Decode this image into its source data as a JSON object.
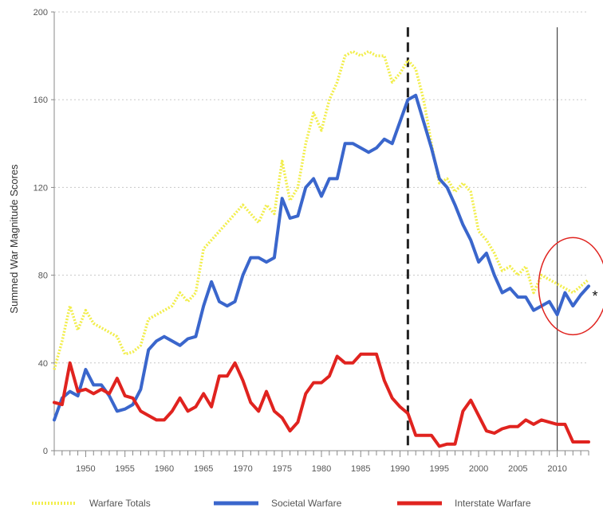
{
  "chart_data": {
    "type": "line",
    "title": "",
    "xlabel": "",
    "ylabel": "Summed War Magnitude Scores",
    "xlim": [
      1946,
      2014
    ],
    "ylim": [
      0,
      200
    ],
    "x_ticks": [
      1950,
      1955,
      1960,
      1965,
      1970,
      1975,
      1980,
      1985,
      1990,
      1995,
      2000,
      2005,
      2010
    ],
    "y_ticks": [
      0,
      40,
      80,
      120,
      160,
      200
    ],
    "grid": "horizontal-dotted",
    "legend": "bottom",
    "annotations": {
      "dashed_line_x": 1991,
      "solid_line_x": 2010,
      "circle_center": [
        2012,
        75
      ],
      "asterisk": "*"
    },
    "x": [
      1946,
      1947,
      1948,
      1949,
      1950,
      1951,
      1952,
      1953,
      1954,
      1955,
      1956,
      1957,
      1958,
      1959,
      1960,
      1961,
      1962,
      1963,
      1964,
      1965,
      1966,
      1967,
      1968,
      1969,
      1970,
      1971,
      1972,
      1973,
      1974,
      1975,
      1976,
      1977,
      1978,
      1979,
      1980,
      1981,
      1982,
      1983,
      1984,
      1985,
      1986,
      1987,
      1988,
      1989,
      1990,
      1991,
      1992,
      1993,
      1994,
      1995,
      1996,
      1997,
      1998,
      1999,
      2000,
      2001,
      2002,
      2003,
      2004,
      2005,
      2006,
      2007,
      2008,
      2009,
      2010,
      2011,
      2012,
      2013,
      2014
    ],
    "series": [
      {
        "name": "Warfare Totals",
        "color": "#f2ee4c",
        "style": "dotted",
        "values": [
          37,
          50,
          66,
          55,
          64,
          58,
          56,
          54,
          52,
          44,
          45,
          48,
          60,
          62,
          64,
          66,
          72,
          68,
          72,
          92,
          96,
          100,
          104,
          108,
          112,
          108,
          104,
          112,
          108,
          132,
          114,
          120,
          140,
          154,
          146,
          160,
          168,
          180,
          182,
          180,
          182,
          180,
          180,
          168,
          172,
          178,
          174,
          160,
          140,
          122,
          124,
          118,
          122,
          118,
          100,
          96,
          90,
          82,
          84,
          80,
          84,
          72,
          80,
          78,
          76,
          74,
          72,
          75,
          78
        ]
      },
      {
        "name": "Societal Warfare",
        "color": "#3a66cc",
        "style": "solid",
        "values": [
          14,
          24,
          27,
          25,
          37,
          30,
          30,
          25,
          18,
          19,
          21,
          28,
          46,
          50,
          52,
          50,
          48,
          51,
          52,
          66,
          77,
          68,
          66,
          68,
          80,
          88,
          88,
          86,
          88,
          115,
          106,
          107,
          120,
          124,
          116,
          124,
          124,
          140,
          140,
          138,
          136,
          138,
          142,
          140,
          150,
          160,
          162,
          150,
          138,
          124,
          120,
          112,
          103,
          96,
          86,
          90,
          80,
          72,
          74,
          70,
          70,
          64,
          66,
          68,
          62,
          72,
          66,
          71,
          75
        ]
      },
      {
        "name": "Interstate Warfare",
        "color": "#e0231f",
        "style": "solid",
        "values": [
          22,
          21,
          40,
          27,
          28,
          26,
          28,
          26,
          33,
          25,
          24,
          18,
          16,
          14,
          14,
          18,
          24,
          18,
          20,
          26,
          20,
          34,
          34,
          40,
          32,
          22,
          18,
          27,
          18,
          15,
          9,
          13,
          26,
          31,
          31,
          34,
          43,
          40,
          40,
          44,
          44,
          44,
          32,
          24,
          20,
          17,
          7,
          7,
          7,
          2,
          3,
          3,
          18,
          23,
          16,
          9,
          8,
          10,
          11,
          11,
          14,
          12,
          14,
          13,
          12,
          12,
          4,
          4,
          4
        ]
      }
    ]
  }
}
